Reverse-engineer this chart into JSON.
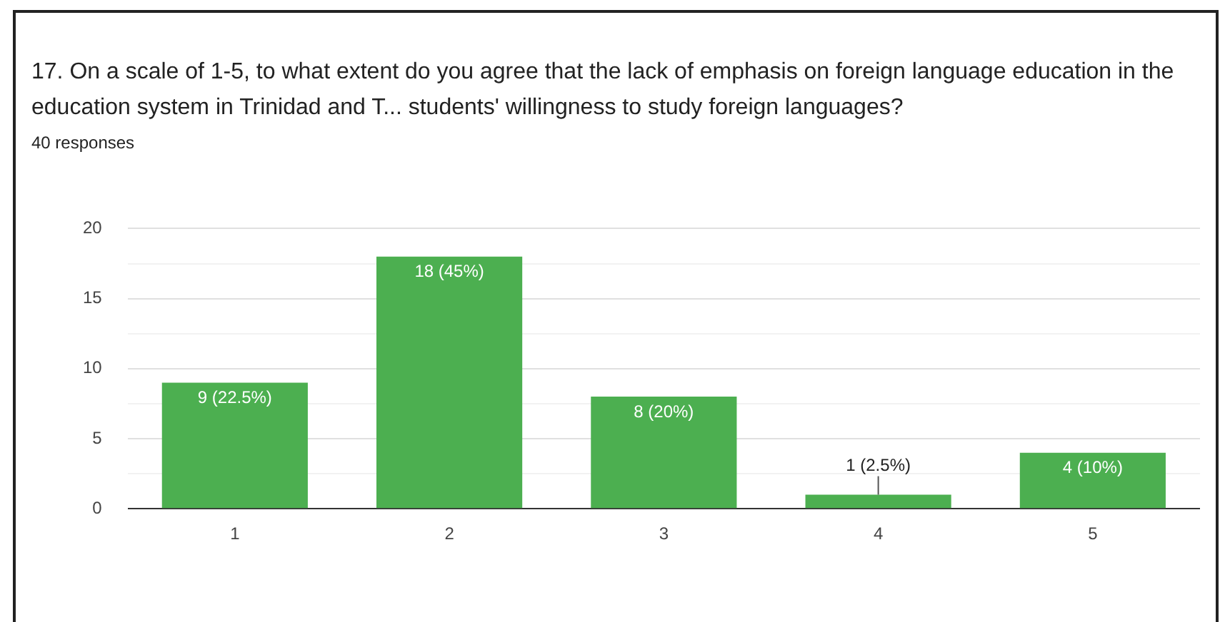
{
  "chart_data": {
    "type": "bar",
    "title": "17. On a scale of 1-5, to what extent do you agree that the lack of emphasis on foreign language education in the education system in Trinidad and T... students' willingness to study foreign languages?",
    "subtitle": "40 responses",
    "categories": [
      "1",
      "2",
      "3",
      "4",
      "5"
    ],
    "values": [
      9,
      18,
      8,
      1,
      4
    ],
    "value_labels": [
      "9 (22.5%)",
      "18 (45%)",
      "8 (20%)",
      "1 (2.5%)",
      "4 (10%)"
    ],
    "color": "#4caf50",
    "ylim": [
      0,
      20
    ],
    "yticks": [
      0,
      {
        "value": 2.5,
        "label": null
      },
      5,
      {
        "value": 7.5,
        "label": null
      },
      10,
      {
        "value": 12.5,
        "label": null
      },
      15,
      {
        "value": 17.5,
        "label": null
      },
      20
    ],
    "grid": "y",
    "legend": false
  }
}
